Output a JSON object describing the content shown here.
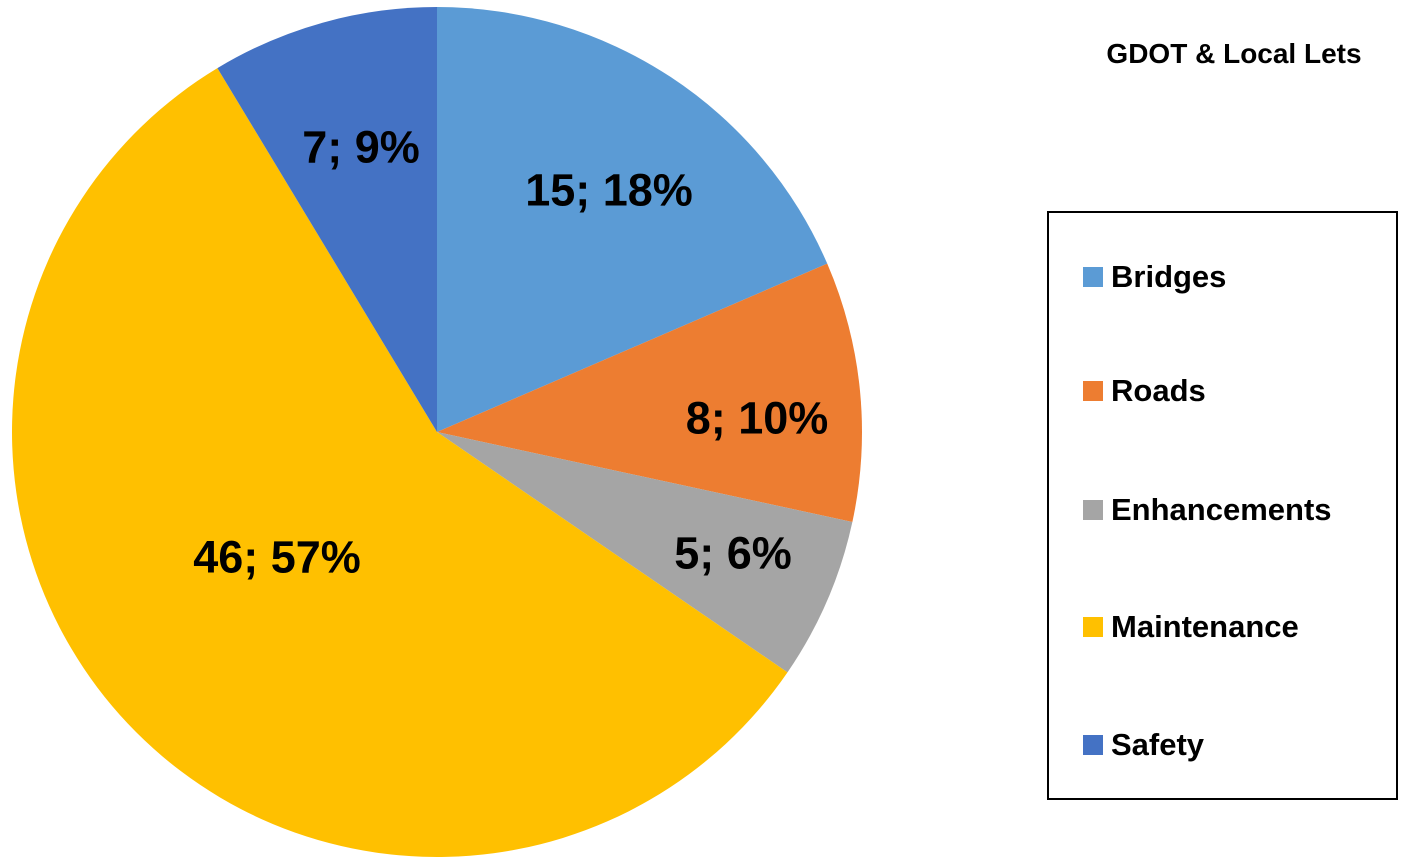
{
  "chart_data": {
    "type": "pie",
    "title": "GDOT & Local Lets",
    "legend_position": "right",
    "slices": [
      {
        "name": "Bridges",
        "value": 15,
        "label": "15; 18%",
        "color": "#5B9BD5"
      },
      {
        "name": "Roads",
        "value": 8,
        "label": "8; 10%",
        "color": "#ED7D31"
      },
      {
        "name": "Enhancements",
        "value": 5,
        "label": "5; 6%",
        "color": "#A5A5A5"
      },
      {
        "name": "Maintenance",
        "value": 46,
        "label": "46; 57%",
        "color": "#FFC000"
      },
      {
        "name": "Safety",
        "value": 7,
        "label": "7; 9%",
        "color": "#4472C4"
      }
    ]
  }
}
